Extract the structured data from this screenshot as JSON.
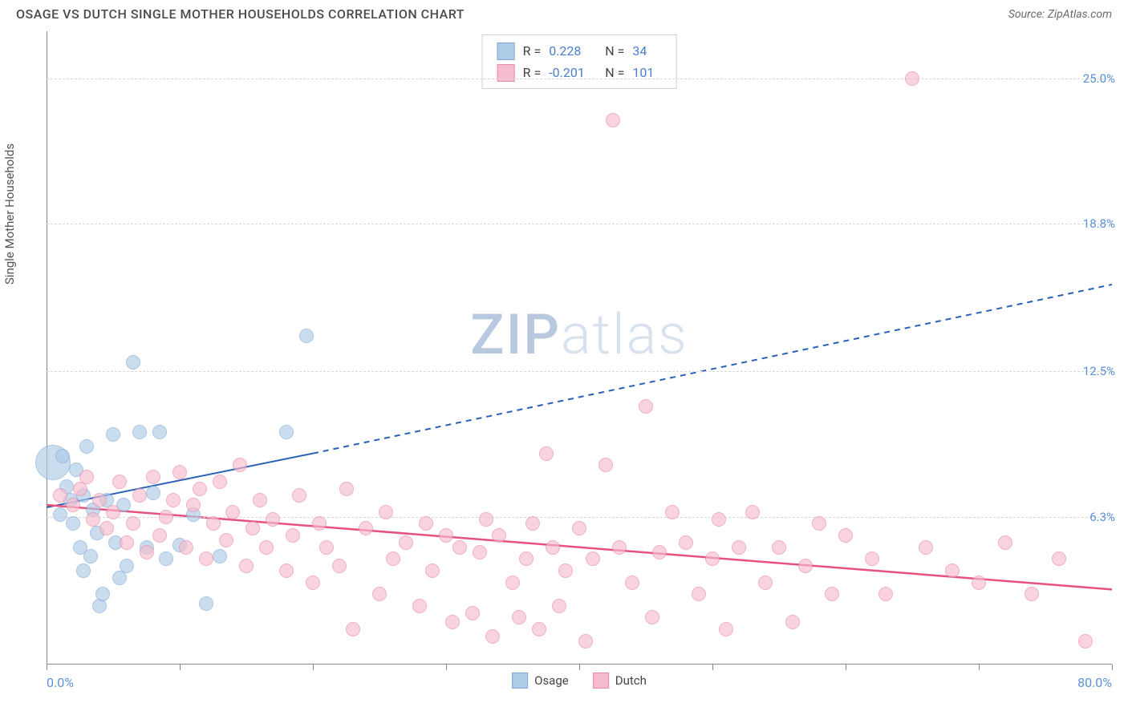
{
  "header": {
    "title": "OSAGE VS DUTCH SINGLE MOTHER HOUSEHOLDS CORRELATION CHART",
    "source_prefix": "Source: ",
    "source_name": "ZipAtlas.com"
  },
  "watermark": {
    "part1": "ZIP",
    "part2": "atlas"
  },
  "chart": {
    "type": "scatter",
    "ylabel": "Single Mother Households",
    "xlim": [
      0,
      80
    ],
    "ylim": [
      0,
      27
    ],
    "xmin_label": "0.0%",
    "xmax_label": "80.0%",
    "yticks": [
      {
        "v": 6.3,
        "label": "6.3%"
      },
      {
        "v": 12.5,
        "label": "12.5%"
      },
      {
        "v": 18.8,
        "label": "18.8%"
      },
      {
        "v": 25.0,
        "label": "25.0%"
      }
    ],
    "xtick_positions": [
      0,
      10,
      20,
      30,
      40,
      50,
      60,
      70,
      80
    ],
    "background_color": "#ffffff",
    "grid_color": "#d8d8d8",
    "series": [
      {
        "name": "Osage",
        "label": "Osage",
        "fill": "#aecbe8",
        "stroke": "#7fa9d4",
        "marker_radius": 9,
        "fill_opacity": 0.65,
        "R_label": "R =",
        "R": "0.228",
        "N_label": "N =",
        "N": "34",
        "trend": {
          "color": "#2961b5",
          "width": 2,
          "x_solid_end": 20,
          "y_start": 6.7,
          "y_at_solid_end": 9.0,
          "y_end": 16.2
        },
        "points": [
          {
            "x": 0.5,
            "y": 8.6,
            "r": 22
          },
          {
            "x": 1.2,
            "y": 8.9
          },
          {
            "x": 1.0,
            "y": 6.4
          },
          {
            "x": 1.5,
            "y": 7.6
          },
          {
            "x": 1.8,
            "y": 7.0
          },
          {
            "x": 2.0,
            "y": 6.0
          },
          {
            "x": 2.2,
            "y": 8.3
          },
          {
            "x": 2.5,
            "y": 5.0
          },
          {
            "x": 2.8,
            "y": 4.0
          },
          {
            "x": 2.8,
            "y": 7.2
          },
          {
            "x": 3.0,
            "y": 9.3
          },
          {
            "x": 3.3,
            "y": 4.6
          },
          {
            "x": 3.5,
            "y": 6.6
          },
          {
            "x": 3.8,
            "y": 5.6
          },
          {
            "x": 4.0,
            "y": 2.5
          },
          {
            "x": 4.2,
            "y": 3.0
          },
          {
            "x": 4.5,
            "y": 7.0
          },
          {
            "x": 5.0,
            "y": 9.8
          },
          {
            "x": 5.2,
            "y": 5.2
          },
          {
            "x": 5.5,
            "y": 3.7
          },
          {
            "x": 5.8,
            "y": 6.8
          },
          {
            "x": 6.0,
            "y": 4.2
          },
          {
            "x": 6.5,
            "y": 12.9
          },
          {
            "x": 7.0,
            "y": 9.9
          },
          {
            "x": 7.5,
            "y": 5.0
          },
          {
            "x": 8.0,
            "y": 7.3
          },
          {
            "x": 8.5,
            "y": 9.9
          },
          {
            "x": 9.0,
            "y": 4.5
          },
          {
            "x": 10.0,
            "y": 5.1
          },
          {
            "x": 11.0,
            "y": 6.4
          },
          {
            "x": 12.0,
            "y": 2.6
          },
          {
            "x": 13.0,
            "y": 4.6
          },
          {
            "x": 18.0,
            "y": 9.9
          },
          {
            "x": 19.5,
            "y": 14.0
          }
        ]
      },
      {
        "name": "Dutch",
        "label": "Dutch",
        "fill": "#f6bccd",
        "stroke": "#e88aa8",
        "marker_radius": 9,
        "fill_opacity": 0.65,
        "R_label": "R =",
        "R": "-0.201",
        "N_label": "N =",
        "N": "101",
        "trend": {
          "color": "#e6527d",
          "width": 2.5,
          "y_start": 6.8,
          "y_end": 3.2
        },
        "points": [
          {
            "x": 1.0,
            "y": 7.2
          },
          {
            "x": 2.0,
            "y": 6.8
          },
          {
            "x": 2.5,
            "y": 7.5
          },
          {
            "x": 3.0,
            "y": 8.0
          },
          {
            "x": 3.5,
            "y": 6.2
          },
          {
            "x": 4.0,
            "y": 7.0
          },
          {
            "x": 4.5,
            "y": 5.8
          },
          {
            "x": 5.0,
            "y": 6.5
          },
          {
            "x": 5.5,
            "y": 7.8
          },
          {
            "x": 6.0,
            "y": 5.2
          },
          {
            "x": 6.5,
            "y": 6.0
          },
          {
            "x": 7.0,
            "y": 7.2
          },
          {
            "x": 7.5,
            "y": 4.8
          },
          {
            "x": 8.0,
            "y": 8.0
          },
          {
            "x": 8.5,
            "y": 5.5
          },
          {
            "x": 9.0,
            "y": 6.3
          },
          {
            "x": 9.5,
            "y": 7.0
          },
          {
            "x": 10.0,
            "y": 8.2
          },
          {
            "x": 10.5,
            "y": 5.0
          },
          {
            "x": 11.0,
            "y": 6.8
          },
          {
            "x": 11.5,
            "y": 7.5
          },
          {
            "x": 12.0,
            "y": 4.5
          },
          {
            "x": 12.5,
            "y": 6.0
          },
          {
            "x": 13.0,
            "y": 7.8
          },
          {
            "x": 13.5,
            "y": 5.3
          },
          {
            "x": 14.0,
            "y": 6.5
          },
          {
            "x": 14.5,
            "y": 8.5
          },
          {
            "x": 15.0,
            "y": 4.2
          },
          {
            "x": 15.5,
            "y": 5.8
          },
          {
            "x": 16.0,
            "y": 7.0
          },
          {
            "x": 16.5,
            "y": 5.0
          },
          {
            "x": 17.0,
            "y": 6.2
          },
          {
            "x": 18.0,
            "y": 4.0
          },
          {
            "x": 18.5,
            "y": 5.5
          },
          {
            "x": 19.0,
            "y": 7.2
          },
          {
            "x": 20.0,
            "y": 3.5
          },
          {
            "x": 20.5,
            "y": 6.0
          },
          {
            "x": 21.0,
            "y": 5.0
          },
          {
            "x": 22.0,
            "y": 4.2
          },
          {
            "x": 22.5,
            "y": 7.5
          },
          {
            "x": 23.0,
            "y": 1.5
          },
          {
            "x": 24.0,
            "y": 5.8
          },
          {
            "x": 25.0,
            "y": 3.0
          },
          {
            "x": 25.5,
            "y": 6.5
          },
          {
            "x": 26.0,
            "y": 4.5
          },
          {
            "x": 27.0,
            "y": 5.2
          },
          {
            "x": 28.0,
            "y": 2.5
          },
          {
            "x": 28.5,
            "y": 6.0
          },
          {
            "x": 29.0,
            "y": 4.0
          },
          {
            "x": 30.0,
            "y": 5.5
          },
          {
            "x": 30.5,
            "y": 1.8
          },
          {
            "x": 31.0,
            "y": 5.0
          },
          {
            "x": 32.0,
            "y": 2.2
          },
          {
            "x": 32.5,
            "y": 4.8
          },
          {
            "x": 33.0,
            "y": 6.2
          },
          {
            "x": 33.5,
            "y": 1.2
          },
          {
            "x": 34.0,
            "y": 5.5
          },
          {
            "x": 35.0,
            "y": 3.5
          },
          {
            "x": 35.5,
            "y": 2.0
          },
          {
            "x": 36.0,
            "y": 4.5
          },
          {
            "x": 36.5,
            "y": 6.0
          },
          {
            "x": 37.0,
            "y": 1.5
          },
          {
            "x": 37.5,
            "y": 9.0
          },
          {
            "x": 38.0,
            "y": 5.0
          },
          {
            "x": 38.5,
            "y": 2.5
          },
          {
            "x": 39.0,
            "y": 4.0
          },
          {
            "x": 40.0,
            "y": 5.8
          },
          {
            "x": 40.5,
            "y": 1.0
          },
          {
            "x": 41.0,
            "y": 4.5
          },
          {
            "x": 42.0,
            "y": 8.5
          },
          {
            "x": 42.5,
            "y": 23.2
          },
          {
            "x": 43.0,
            "y": 5.0
          },
          {
            "x": 44.0,
            "y": 3.5
          },
          {
            "x": 45.0,
            "y": 11.0
          },
          {
            "x": 45.5,
            "y": 2.0
          },
          {
            "x": 46.0,
            "y": 4.8
          },
          {
            "x": 47.0,
            "y": 6.5
          },
          {
            "x": 48.0,
            "y": 5.2
          },
          {
            "x": 49.0,
            "y": 3.0
          },
          {
            "x": 50.0,
            "y": 4.5
          },
          {
            "x": 50.5,
            "y": 6.2
          },
          {
            "x": 51.0,
            "y": 1.5
          },
          {
            "x": 52.0,
            "y": 5.0
          },
          {
            "x": 53.0,
            "y": 6.5
          },
          {
            "x": 54.0,
            "y": 3.5
          },
          {
            "x": 55.0,
            "y": 5.0
          },
          {
            "x": 56.0,
            "y": 1.8
          },
          {
            "x": 57.0,
            "y": 4.2
          },
          {
            "x": 58.0,
            "y": 6.0
          },
          {
            "x": 59.0,
            "y": 3.0
          },
          {
            "x": 60.0,
            "y": 5.5
          },
          {
            "x": 62.0,
            "y": 4.5
          },
          {
            "x": 63.0,
            "y": 3.0
          },
          {
            "x": 65.0,
            "y": 25.0
          },
          {
            "x": 66.0,
            "y": 5.0
          },
          {
            "x": 68.0,
            "y": 4.0
          },
          {
            "x": 70.0,
            "y": 3.5
          },
          {
            "x": 72.0,
            "y": 5.2
          },
          {
            "x": 74.0,
            "y": 3.0
          },
          {
            "x": 76.0,
            "y": 4.5
          },
          {
            "x": 78.0,
            "y": 1.0
          }
        ]
      }
    ],
    "legend_bottom": [
      {
        "series": 0
      },
      {
        "series": 1
      }
    ]
  }
}
